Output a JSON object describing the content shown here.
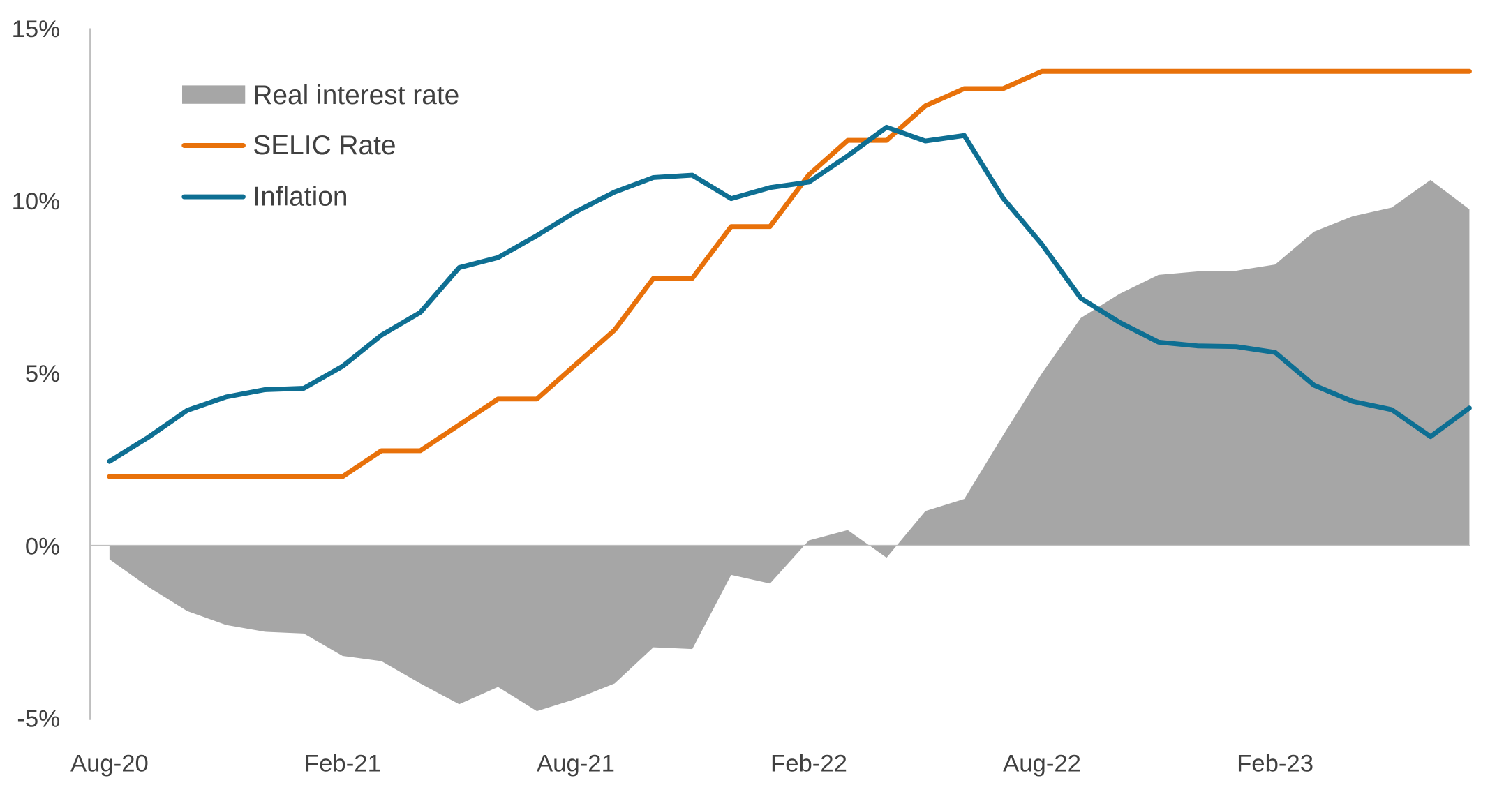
{
  "chart_data": {
    "type": "line",
    "title": "",
    "xlabel": "",
    "ylabel": "",
    "ylim": [
      -5,
      15
    ],
    "yticks": [
      "-5%",
      "0%",
      "5%",
      "10%",
      "15%"
    ],
    "ytick_values": [
      -5,
      0,
      5,
      10,
      15
    ],
    "xtick_labels": [
      "Aug-20",
      "Feb-21",
      "Aug-21",
      "Feb-22",
      "Aug-22",
      "Feb-23"
    ],
    "xtick_indices": [
      0,
      6,
      12,
      18,
      24,
      30
    ],
    "x": [
      "Aug-20",
      "Sep-20",
      "Oct-20",
      "Nov-20",
      "Dec-20",
      "Jan-21",
      "Feb-21",
      "Mar-21",
      "Apr-21",
      "May-21",
      "Jun-21",
      "Jul-21",
      "Aug-21",
      "Sep-21",
      "Oct-21",
      "Nov-21",
      "Dec-21",
      "Jan-22",
      "Feb-22",
      "Mar-22",
      "Apr-22",
      "May-22",
      "Jun-22",
      "Jul-22",
      "Aug-22",
      "Sep-22",
      "Oct-22",
      "Nov-22",
      "Dec-22",
      "Jan-23",
      "Feb-23",
      "Mar-23",
      "Apr-23",
      "May-23",
      "Jun-23",
      "Jul-23"
    ],
    "legend_position": "top-left",
    "grid": false,
    "series": [
      {
        "name": "Real interest rate",
        "kind": "area",
        "color": "#A6A6A6",
        "values": [
          -0.4,
          -1.2,
          -1.9,
          -2.3,
          -2.5,
          -2.55,
          -3.2,
          -3.35,
          -4.0,
          -4.6,
          -4.1,
          -4.8,
          -4.45,
          -4.0,
          -2.95,
          -3.0,
          -0.85,
          -1.1,
          0.15,
          0.45,
          -0.35,
          1.0,
          1.35,
          3.2,
          5.0,
          6.6,
          7.3,
          7.85,
          7.95,
          7.97,
          8.15,
          9.1,
          9.55,
          9.8,
          10.6,
          9.75
        ]
      },
      {
        "name": "SELIC Rate",
        "kind": "line",
        "color": "#E8710A",
        "values": [
          2,
          2,
          2,
          2,
          2,
          2,
          2,
          2.75,
          2.75,
          3.5,
          4.25,
          4.25,
          5.25,
          6.25,
          7.75,
          7.75,
          9.25,
          9.25,
          10.75,
          11.75,
          11.75,
          12.75,
          13.25,
          13.25,
          13.75,
          13.75,
          13.75,
          13.75,
          13.75,
          13.75,
          13.75,
          13.75,
          13.75,
          13.75,
          13.75,
          13.75
        ]
      },
      {
        "name": "Inflation",
        "kind": "line",
        "color": "#0E6F93",
        "values": [
          2.44,
          3.14,
          3.92,
          4.31,
          4.52,
          4.56,
          5.2,
          6.1,
          6.76,
          8.06,
          8.35,
          8.99,
          9.68,
          10.25,
          10.67,
          10.74,
          10.06,
          10.38,
          10.54,
          11.3,
          12.13,
          11.73,
          11.89,
          10.07,
          8.73,
          7.17,
          6.47,
          5.9,
          5.79,
          5.77,
          5.6,
          4.65,
          4.18,
          3.94,
          3.16,
          3.99
        ]
      }
    ]
  }
}
